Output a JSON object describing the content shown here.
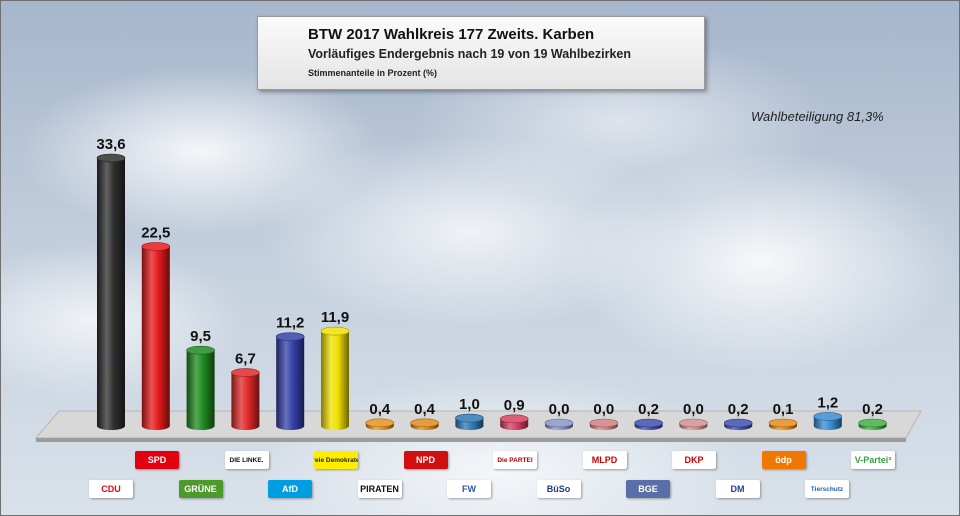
{
  "header": {
    "title": "BTW 2017 Wahlkreis 177 Zweits. Karben",
    "subtitle": "Vorläufiges Endergebnis nach 19 von 19 Wahlbezirken",
    "unit_note": "Stimmenanteile in Prozent (%)"
  },
  "turnout": "Wahlbeteiligung 81,3%",
  "chart_data": {
    "type": "bar",
    "categories": [
      "CDU",
      "SPD",
      "GRÜNE",
      "DIE LINKE",
      "AfD",
      "FDP",
      "NPD",
      "PIRATEN",
      "FW",
      "Die PARTEI",
      "BüSo",
      "MLPD",
      "BGE",
      "DKP",
      "DM",
      "ödp",
      "Tierschutzallianz",
      "V-Partei³"
    ],
    "values": [
      33.6,
      22.5,
      9.5,
      6.7,
      11.2,
      11.9,
      0.4,
      0.4,
      1.0,
      0.9,
      0.0,
      0.0,
      0.2,
      0.0,
      0.2,
      0.1,
      1.2,
      0.2
    ],
    "value_labels": [
      "33,6",
      "22,5",
      "9,5",
      "6,7",
      "11,2",
      "11,9",
      "0,4",
      "0,4",
      "1,0",
      "0,9",
      "0,0",
      "0,0",
      "0,2",
      "0,0",
      "0,2",
      "0,1",
      "1,2",
      "0,2"
    ],
    "colors": [
      "#2e2e2e",
      "#e41a1c",
      "#1f8a1f",
      "#e02828",
      "#3540a8",
      "#f0e000",
      "#e8921e",
      "#e08a1a",
      "#2f7ab4",
      "#d64060",
      "#8a95c8",
      "#d08080",
      "#4050b0",
      "#d09090",
      "#4050b0",
      "#e88a1a",
      "#3a8cd0",
      "#40b040"
    ],
    "ylim": [
      0,
      35
    ]
  },
  "logos": {
    "bottom_row": [
      {
        "text": "CDU",
        "bg": "#ffffff",
        "fg": "#e30613"
      },
      {
        "text": "GRÜNE",
        "bg": "#4c9a2a",
        "fg": "#ffffff"
      },
      {
        "text": "AfD",
        "bg": "#009ee0",
        "fg": "#ffffff"
      },
      {
        "text": "PIRATEN",
        "bg": "#ffffff",
        "fg": "#111111"
      },
      {
        "text": "FW",
        "bg": "#ffffff",
        "fg": "#2a5aa8"
      },
      {
        "text": "BüSo",
        "bg": "#ffffff",
        "fg": "#1a3a8a"
      },
      {
        "text": "BGE",
        "bg": "#5a6fa8",
        "fg": "#ffffff"
      },
      {
        "text": "DM",
        "bg": "#ffffff",
        "fg": "#1f3f8f"
      },
      {
        "text": "Tierschutz",
        "bg": "#ffffff",
        "fg": "#1f5fb0"
      }
    ],
    "top_row": [
      {
        "text": "SPD",
        "bg": "#e3000f",
        "fg": "#ffffff"
      },
      {
        "text": "DIE LINKE.",
        "bg": "#ffffff",
        "fg": "#111111"
      },
      {
        "text": "Freie Demokraten",
        "bg": "#ffed00",
        "fg": "#222222"
      },
      {
        "text": "NPD",
        "bg": "#d01010",
        "fg": "#ffffff"
      },
      {
        "text": "Die PARTEI",
        "bg": "#ffffff",
        "fg": "#b00000"
      },
      {
        "text": "MLPD",
        "bg": "#ffffff",
        "fg": "#d00000"
      },
      {
        "text": "DKP",
        "bg": "#ffffff",
        "fg": "#d00000"
      },
      {
        "text": "ödp",
        "bg": "#f07800",
        "fg": "#ffffff"
      },
      {
        "text": "V-Partei³",
        "bg": "#ffffff",
        "fg": "#3aa040"
      }
    ]
  }
}
